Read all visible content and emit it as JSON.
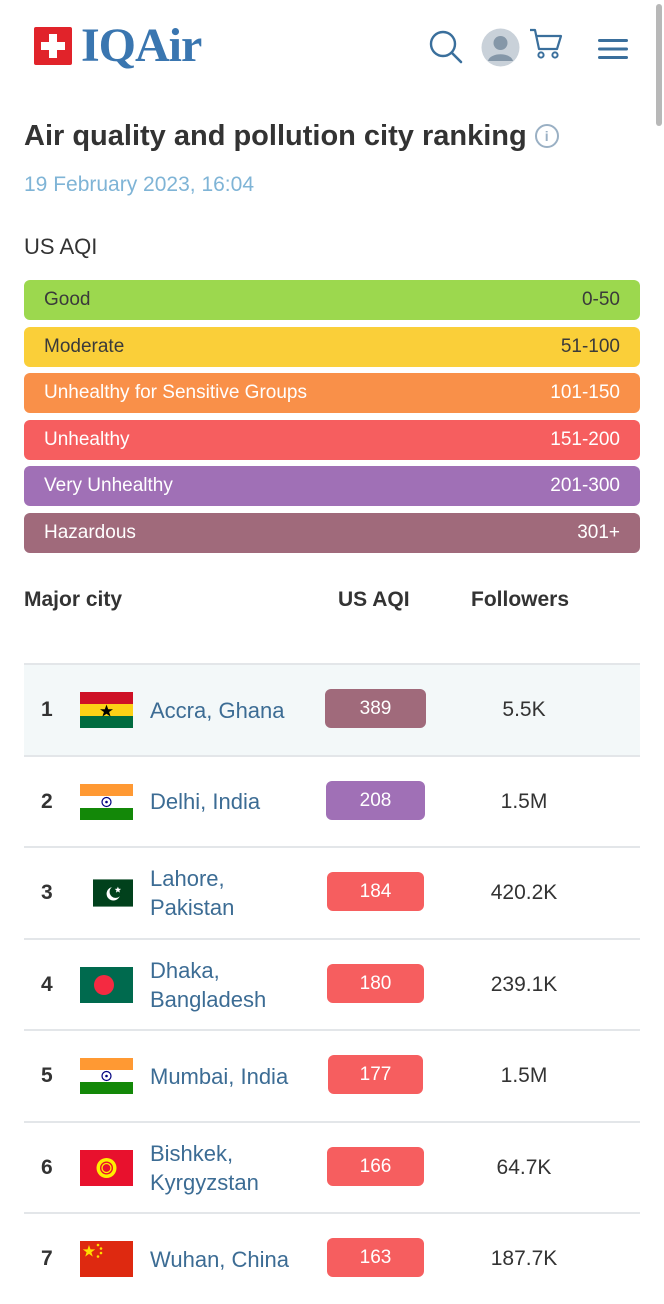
{
  "header": {
    "brand": "IQAir",
    "icons": [
      "swiss-flag-icon",
      "search-icon",
      "user-avatar-icon",
      "cart-icon",
      "menu-icon"
    ]
  },
  "page": {
    "title": "Air quality and pollution city ranking",
    "info_icon": "info-icon",
    "date": "19 February 2023, 16:04",
    "aqi_label": "US AQI"
  },
  "scale": [
    {
      "label": "Good",
      "range": "0-50",
      "color": "#9cd84e"
    },
    {
      "label": "Moderate",
      "range": "51-100",
      "color": "#facf39"
    },
    {
      "label": "Unhealthy for Sensitive Groups",
      "range": "101-150",
      "color": "#f99049"
    },
    {
      "label": "Unhealthy",
      "range": "151-200",
      "color": "#f65e5f"
    },
    {
      "label": "Very Unhealthy",
      "range": "201-300",
      "color": "#a070b6"
    },
    {
      "label": "Hazardous",
      "range": "301+",
      "color": "#a06a7b"
    }
  ],
  "table": {
    "headers": {
      "city": "Major city",
      "aqi": "US AQI",
      "followers": "Followers"
    },
    "rows": [
      {
        "rank": "1",
        "city": "Accra, Ghana",
        "flag": "ghana-flag-icon",
        "aqi": "389",
        "aqi_color": "#a06a7b",
        "followers": "5.5K"
      },
      {
        "rank": "2",
        "city": "Delhi, India",
        "flag": "india-flag-icon",
        "aqi": "208",
        "aqi_color": "#a070b6",
        "followers": "1.5M"
      },
      {
        "rank": "3",
        "city": "Lahore, Pakistan",
        "flag": "pakistan-flag-icon",
        "aqi": "184",
        "aqi_color": "#f65e5f",
        "followers": "420.2K"
      },
      {
        "rank": "4",
        "city": "Dhaka, Bangladesh",
        "flag": "bangladesh-flag-icon",
        "aqi": "180",
        "aqi_color": "#f65e5f",
        "followers": "239.1K"
      },
      {
        "rank": "5",
        "city": "Mumbai, India",
        "flag": "india-flag-icon",
        "aqi": "177",
        "aqi_color": "#f65e5f",
        "followers": "1.5M"
      },
      {
        "rank": "6",
        "city": "Bishkek, Kyrgyzstan",
        "flag": "kyrgyzstan-flag-icon",
        "aqi": "166",
        "aqi_color": "#f65e5f",
        "followers": "64.7K"
      },
      {
        "rank": "7",
        "city": "Wuhan, China",
        "flag": "china-flag-icon",
        "aqi": "163",
        "aqi_color": "#f65e5f",
        "followers": "187.7K"
      }
    ]
  }
}
